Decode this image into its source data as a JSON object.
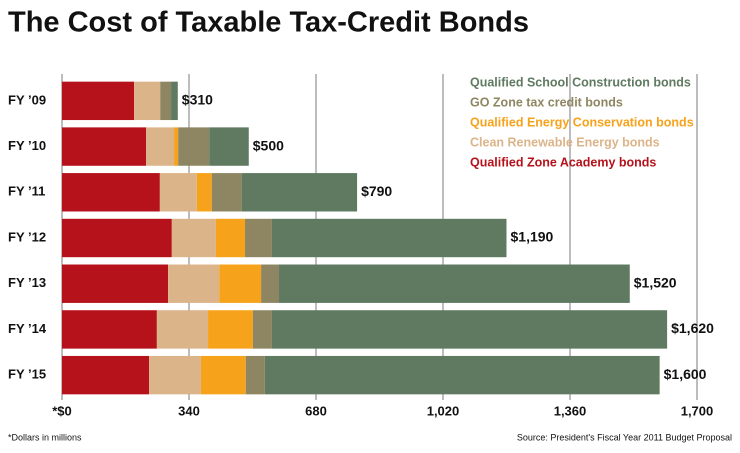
{
  "chart_data": {
    "type": "stacked-barh",
    "title": "The Cost of Taxable Tax-Credit Bonds",
    "categories": [
      "FY ’09",
      "FY ’10",
      "FY ’11",
      "FY ’12",
      "FY ’13",
      "FY ’14",
      "FY ’15"
    ],
    "series": [
      {
        "name": "Qualified Zone Academy bonds",
        "color": "#b5121b",
        "values": [
          193,
          225,
          262,
          294,
          284,
          254,
          233
        ]
      },
      {
        "name": "Clean Renewable Energy bonds",
        "color": "#dcb48a",
        "values": [
          70,
          75,
          99,
          118,
          137,
          137,
          139
        ]
      },
      {
        "name": "Qualified Energy Conservation bonds",
        "color": "#f7a21b",
        "values": [
          0,
          11,
          40,
          78,
          112,
          120,
          120
        ]
      },
      {
        "name": "GO Zone tax credit bonds",
        "color": "#8e8662",
        "values": [
          29,
          83,
          80,
          72,
          48,
          51,
          51
        ]
      },
      {
        "name": "Qualified School Construction bonds",
        "color": "#5f7a60",
        "values": [
          18,
          106,
          309,
          628,
          939,
          1058,
          1057
        ]
      }
    ],
    "totals": [
      310,
      500,
      790,
      1190,
      1520,
      1620,
      1600
    ],
    "total_labels": [
      "$310",
      "$500",
      "$790",
      "$1,190",
      "$1,520",
      "$1,620",
      "$1,600"
    ],
    "xlim": [
      0,
      1700
    ],
    "xticks": [
      {
        "value": 0,
        "label": "*$0"
      },
      340,
      680,
      {
        "value": 1020,
        "label": "1,020"
      },
      {
        "value": 1360,
        "label": "1,360"
      },
      {
        "value": 1700,
        "label": "1,700"
      }
    ],
    "grid": true,
    "note": "*Dollars in millions",
    "source": "Source: President's Fiscal Year 2011 Budget Proposal"
  }
}
